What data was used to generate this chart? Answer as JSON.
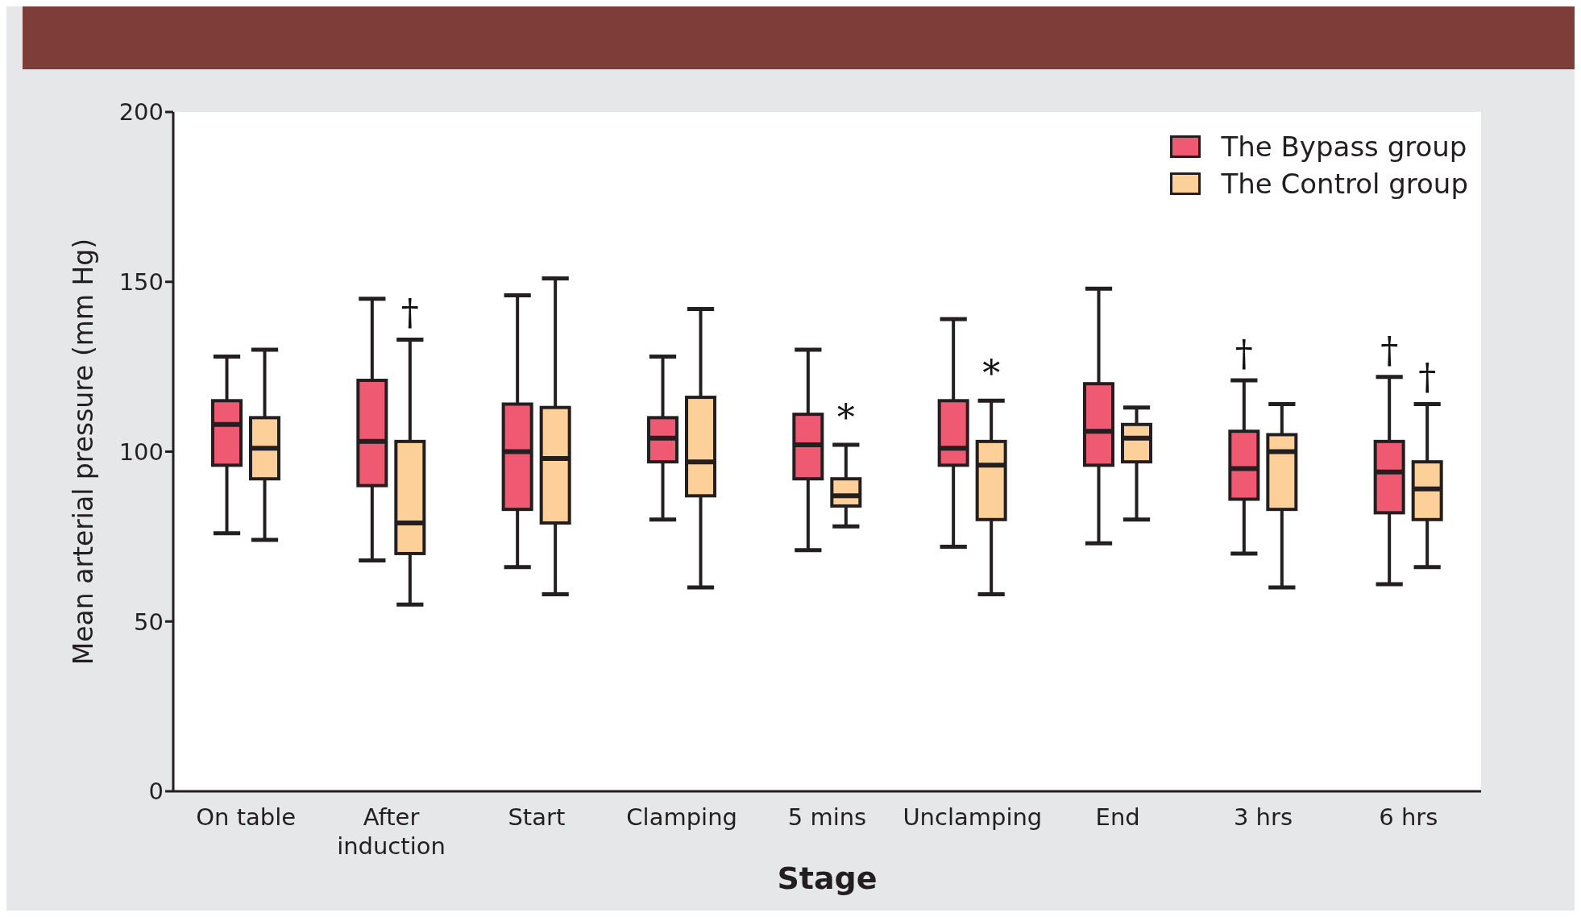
{
  "chart_data": {
    "type": "box",
    "xlabel": "Stage",
    "ylabel": "Mean arterial pressure (mm Hg)",
    "categories": [
      "On table",
      "After induction",
      "Start",
      "Clamping",
      "5 mins",
      "Unclamping",
      "End",
      "3 hrs",
      "6 hrs"
    ],
    "ylim": [
      0,
      200
    ],
    "yticks": [
      0,
      50,
      100,
      150,
      200
    ],
    "legend": "top right",
    "grid": false,
    "series": [
      {
        "name": "The Bypass group",
        "color": "#ef5a72",
        "boxes": [
          {
            "low": 76,
            "q1": 96,
            "median": 108,
            "q3": 115,
            "high": 128
          },
          {
            "low": 68,
            "q1": 90,
            "median": 103,
            "q3": 121,
            "high": 145
          },
          {
            "low": 66,
            "q1": 83,
            "median": 100,
            "q3": 114,
            "high": 146
          },
          {
            "low": 80,
            "q1": 97,
            "median": 104,
            "q3": 110,
            "high": 128
          },
          {
            "low": 71,
            "q1": 92,
            "median": 102,
            "q3": 111,
            "high": 130
          },
          {
            "low": 72,
            "q1": 96,
            "median": 101,
            "q3": 115,
            "high": 139
          },
          {
            "low": 73,
            "q1": 96,
            "median": 106,
            "q3": 120,
            "high": 148
          },
          {
            "low": 70,
            "q1": 86,
            "median": 95,
            "q3": 106,
            "high": 121
          },
          {
            "low": 61,
            "q1": 82,
            "median": 94,
            "q3": 103,
            "high": 122
          }
        ]
      },
      {
        "name": "The Control group",
        "color": "#fdd09a",
        "boxes": [
          {
            "low": 74,
            "q1": 92,
            "median": 101,
            "q3": 110,
            "high": 130
          },
          {
            "low": 55,
            "q1": 70,
            "median": 79,
            "q3": 103,
            "high": 133
          },
          {
            "low": 58,
            "q1": 79,
            "median": 98,
            "q3": 113,
            "high": 151
          },
          {
            "low": 60,
            "q1": 87,
            "median": 97,
            "q3": 116,
            "high": 142
          },
          {
            "low": 78,
            "q1": 84,
            "median": 87,
            "q3": 92,
            "high": 102
          },
          {
            "low": 58,
            "q1": 80,
            "median": 96,
            "q3": 103,
            "high": 115
          },
          {
            "low": 80,
            "q1": 97,
            "median": 104,
            "q3": 108,
            "high": 113
          },
          {
            "low": 60,
            "q1": 83,
            "median": 100,
            "q3": 105,
            "high": 114
          },
          {
            "low": 66,
            "q1": 80,
            "median": 89,
            "q3": 97,
            "high": 114
          }
        ]
      }
    ],
    "annotations": [
      "†",
      "*",
      "*",
      "†",
      "†",
      "†"
    ]
  }
}
